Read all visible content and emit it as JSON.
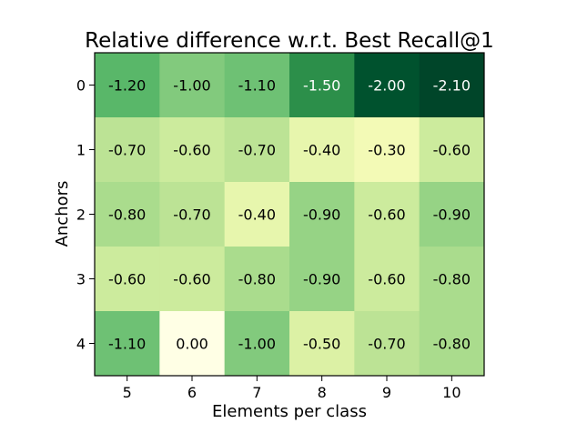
{
  "chart_data": {
    "type": "heatmap",
    "title": "Relative difference w.r.t. Best Recall@1",
    "xlabel": "Elements per class",
    "ylabel": "Anchors",
    "x_ticks": [
      "5",
      "6",
      "7",
      "8",
      "9",
      "10"
    ],
    "y_ticks": [
      "0",
      "1",
      "2",
      "3",
      "4"
    ],
    "colormap": "Greens_reversed",
    "color_low": "#ffffe5",
    "color_high": "#004529",
    "vmin": -2.1,
    "vmax": 0.0,
    "values": [
      [
        -1.2,
        -1.0,
        -1.1,
        -1.5,
        -2.0,
        -2.1
      ],
      [
        -0.7,
        -0.6,
        -0.7,
        -0.4,
        -0.3,
        -0.6
      ],
      [
        -0.8,
        -0.7,
        -0.4,
        -0.9,
        -0.6,
        -0.9
      ],
      [
        -0.6,
        -0.6,
        -0.8,
        -0.9,
        -0.6,
        -0.8
      ],
      [
        -1.1,
        0.0,
        -1.0,
        -0.5,
        -0.7,
        -0.8
      ]
    ],
    "cell_labels": [
      [
        "-1.20",
        "-1.00",
        "-1.10",
        "-1.50",
        "-2.00",
        "-2.10"
      ],
      [
        "-0.70",
        "-0.60",
        "-0.70",
        "-0.40",
        "-0.30",
        "-0.60"
      ],
      [
        "-0.80",
        "-0.70",
        "-0.40",
        "-0.90",
        "-0.60",
        "-0.90"
      ],
      [
        "-0.60",
        "-0.60",
        "-0.80",
        "-0.90",
        "-0.60",
        "-0.80"
      ],
      [
        "-1.10",
        "0.00",
        "-1.00",
        "-0.50",
        "-0.70",
        "-0.80"
      ]
    ]
  }
}
